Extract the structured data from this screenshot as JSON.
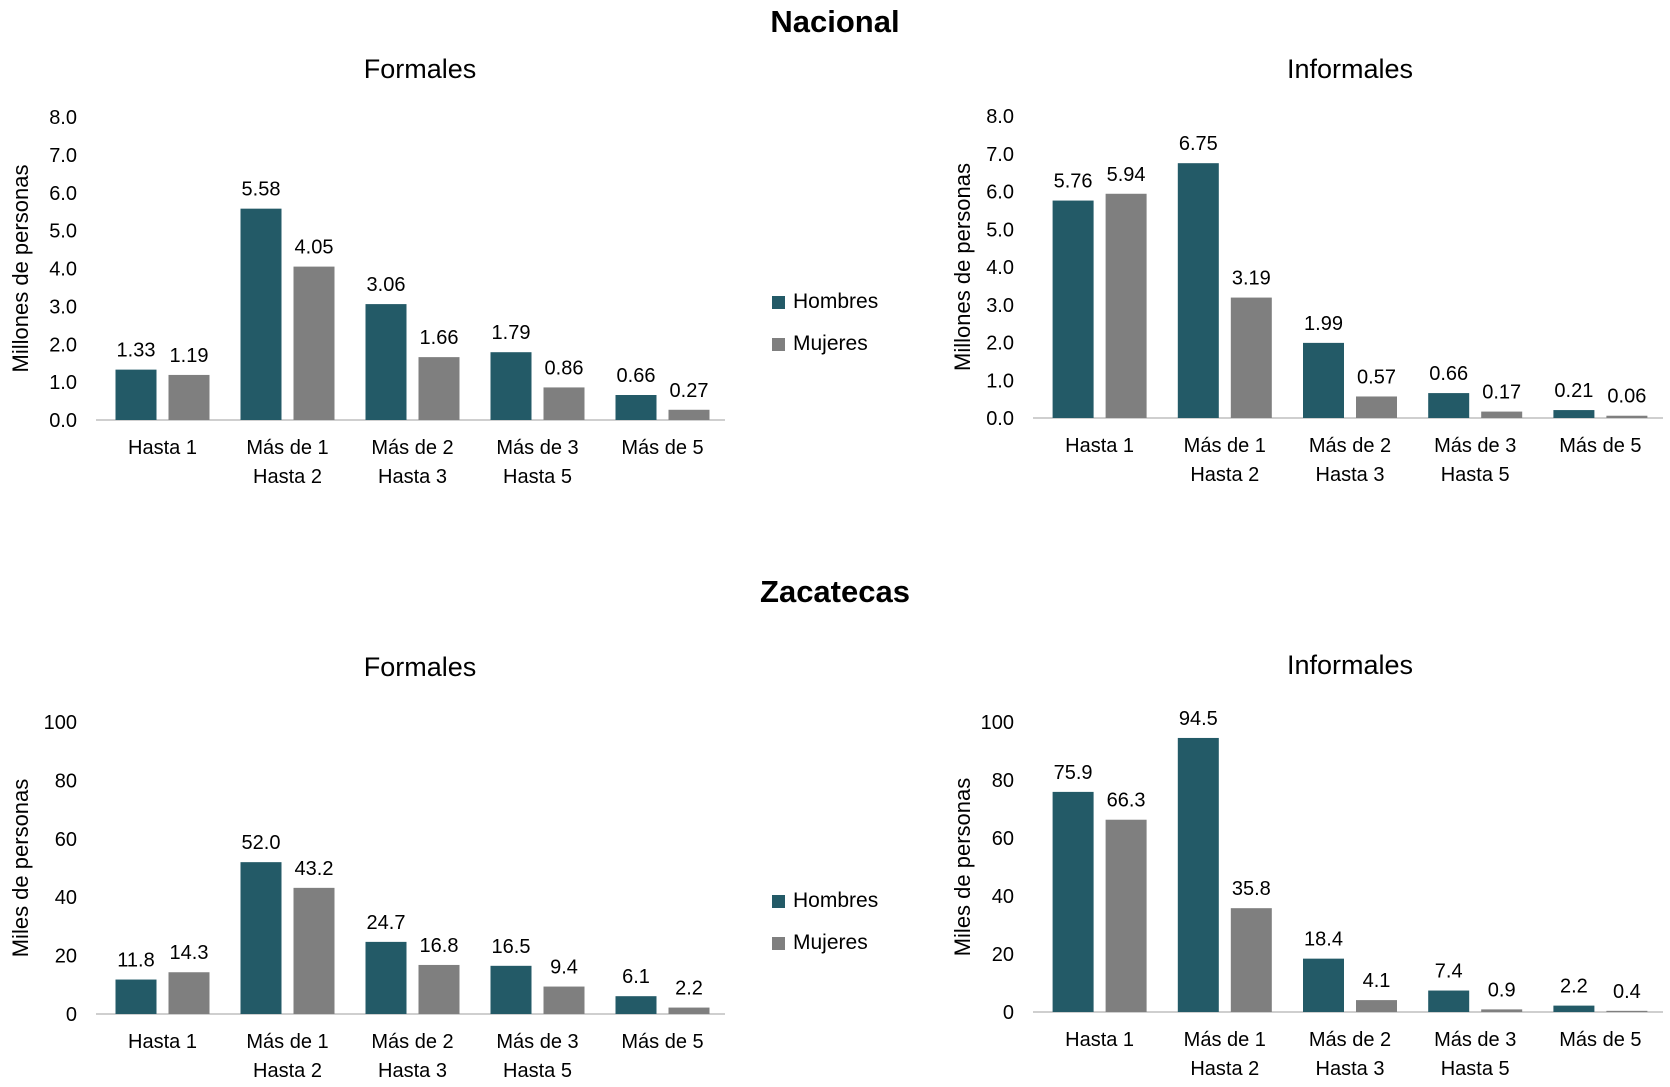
{
  "sections": [
    {
      "title": "Nacional"
    },
    {
      "title": "Zacatecas"
    }
  ],
  "legend": {
    "male": "Hombres",
    "female": "Mujeres"
  },
  "colors": {
    "male": "#235a67",
    "female": "#7f7f7f",
    "axis": "#bfbfbf"
  },
  "chart_data": [
    {
      "type": "bar",
      "section": "Nacional",
      "title": "Formales",
      "ylabel": "Millones de personas",
      "ylim": [
        0,
        8
      ],
      "yticks": [
        "0.0",
        "1.0",
        "2.0",
        "3.0",
        "4.0",
        "5.0",
        "6.0",
        "7.0",
        "8.0"
      ],
      "categories": [
        [
          "Hasta 1"
        ],
        [
          "Más de 1",
          "Hasta 2"
        ],
        [
          "Más de 2",
          "Hasta 3"
        ],
        [
          "Más de 3",
          "Hasta 5"
        ],
        [
          "Más de 5"
        ]
      ],
      "series": [
        {
          "name": "Hombres",
          "values": [
            1.33,
            5.58,
            3.06,
            1.79,
            0.66
          ],
          "labels": [
            "1.33",
            "5.58",
            "3.06",
            "1.79",
            "0.66"
          ]
        },
        {
          "name": "Mujeres",
          "values": [
            1.19,
            4.05,
            1.66,
            0.86,
            0.27
          ],
          "labels": [
            "1.19",
            "4.05",
            "1.66",
            "0.86",
            "0.27"
          ]
        }
      ]
    },
    {
      "type": "bar",
      "section": "Nacional",
      "title": "Informales",
      "ylabel": "Millones de personas",
      "ylim": [
        0,
        8
      ],
      "yticks": [
        "0.0",
        "1.0",
        "2.0",
        "3.0",
        "4.0",
        "5.0",
        "6.0",
        "7.0",
        "8.0"
      ],
      "categories": [
        [
          "Hasta 1"
        ],
        [
          "Más de 1",
          "Hasta 2"
        ],
        [
          "Más de 2",
          "Hasta 3"
        ],
        [
          "Más de 3",
          "Hasta 5"
        ],
        [
          "Más de 5"
        ]
      ],
      "series": [
        {
          "name": "Hombres",
          "values": [
            5.76,
            6.75,
            1.99,
            0.66,
            0.21
          ],
          "labels": [
            "5.76",
            "6.75",
            "1.99",
            "0.66",
            "0.21"
          ]
        },
        {
          "name": "Mujeres",
          "values": [
            5.94,
            3.19,
            0.57,
            0.17,
            0.06
          ],
          "labels": [
            "5.94",
            "3.19",
            "0.57",
            "0.17",
            "0.06"
          ]
        }
      ]
    },
    {
      "type": "bar",
      "section": "Zacatecas",
      "title": "Formales",
      "ylabel": "Miles de personas",
      "ylim": [
        0,
        100
      ],
      "yticks": [
        "0",
        "20",
        "40",
        "60",
        "80",
        "100"
      ],
      "categories": [
        [
          "Hasta 1"
        ],
        [
          "Más de 1",
          "Hasta 2"
        ],
        [
          "Más de 2",
          "Hasta 3"
        ],
        [
          "Más de 3",
          "Hasta 5"
        ],
        [
          "Más de 5"
        ]
      ],
      "series": [
        {
          "name": "Hombres",
          "values": [
            11.8,
            52.0,
            24.7,
            16.5,
            6.1
          ],
          "labels": [
            "11.8",
            "52.0",
            "24.7",
            "16.5",
            "6.1"
          ]
        },
        {
          "name": "Mujeres",
          "values": [
            14.3,
            43.2,
            16.8,
            9.4,
            2.2
          ],
          "labels": [
            "14.3",
            "43.2",
            "16.8",
            "9.4",
            "2.2"
          ]
        }
      ]
    },
    {
      "type": "bar",
      "section": "Zacatecas",
      "title": "Informales",
      "ylabel": "Miles  de personas",
      "ylim": [
        0,
        100
      ],
      "yticks": [
        "0",
        "20",
        "40",
        "60",
        "80",
        "100"
      ],
      "categories": [
        [
          "Hasta 1"
        ],
        [
          "Más de 1",
          "Hasta 2"
        ],
        [
          "Más de 2",
          "Hasta 3"
        ],
        [
          "Más de 3",
          "Hasta 5"
        ],
        [
          "Más de 5"
        ]
      ],
      "series": [
        {
          "name": "Hombres",
          "values": [
            75.9,
            94.5,
            18.4,
            7.4,
            2.2
          ],
          "labels": [
            "75.9",
            "94.5",
            "18.4",
            "7.4",
            "2.2"
          ]
        },
        {
          "name": "Mujeres",
          "values": [
            66.3,
            35.8,
            4.1,
            0.9,
            0.4
          ],
          "labels": [
            "66.3",
            "35.8",
            "4.1",
            "0.9",
            "0.4"
          ]
        }
      ]
    }
  ]
}
